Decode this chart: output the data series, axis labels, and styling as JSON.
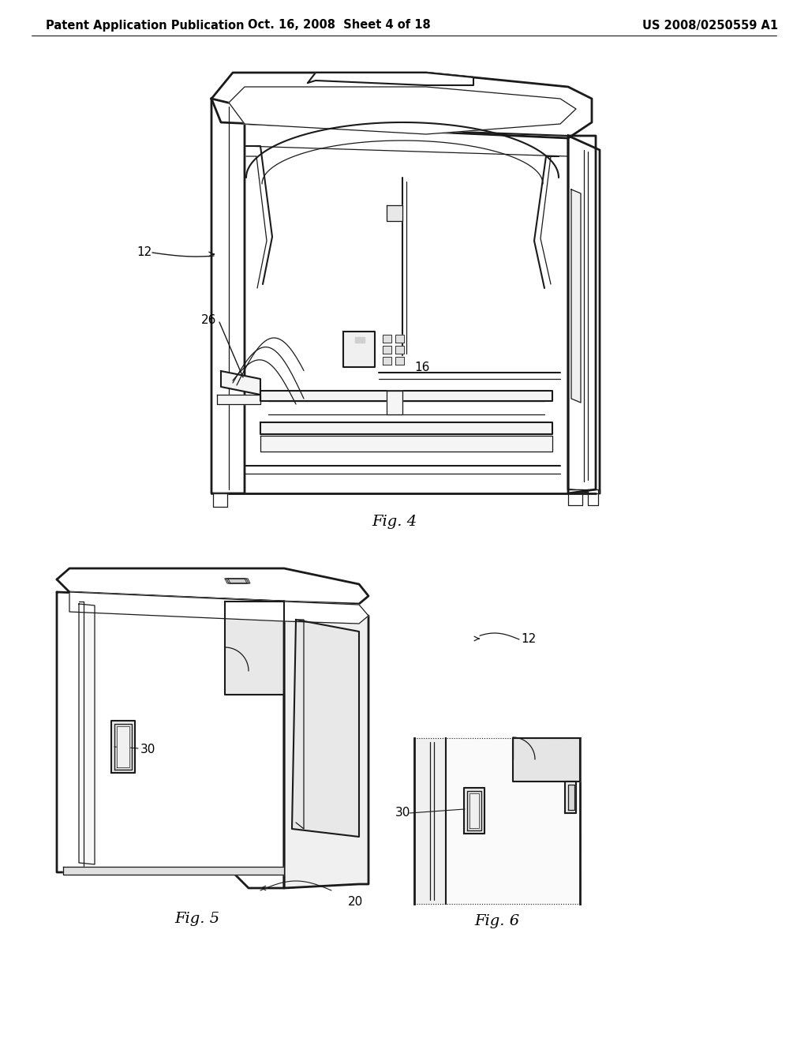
{
  "background_color": "#ffffff",
  "header_left": "Patent Application Publication",
  "header_center": "Oct. 16, 2008  Sheet 4 of 18",
  "header_right": "US 2008/0250559 A1",
  "fig4_label": "Fig. 4",
  "fig5_label": "Fig. 5",
  "fig6_label": "Fig. 6",
  "label_12_fig4": "12",
  "label_26_fig4": "26",
  "label_16_fig4": "16",
  "label_30_fig5": "30",
  "label_20_fig5": "20",
  "label_12_fig5": "12",
  "label_30_fig6": "30",
  "line_color": "#1a1a1a",
  "text_color": "#000000",
  "font_size_header": 10.5,
  "font_size_label": 11,
  "font_size_fig": 14
}
